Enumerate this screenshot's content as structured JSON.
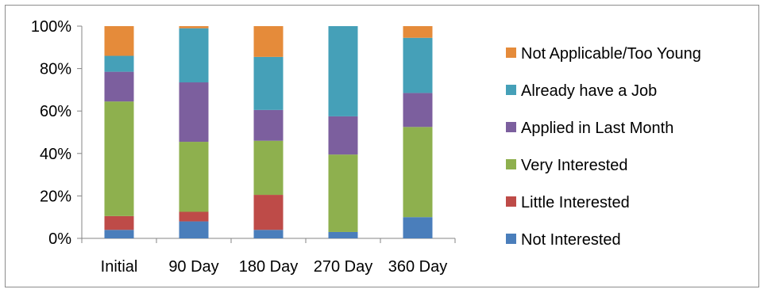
{
  "chart_data": {
    "type": "bar",
    "stacked": true,
    "normalized": true,
    "categories": [
      "Initial",
      "90 Day",
      "180 Day",
      "270 Day",
      "360 Day"
    ],
    "ylim": [
      0,
      100
    ],
    "yticks": [
      "0%",
      "20%",
      "40%",
      "60%",
      "80%",
      "100%"
    ],
    "grid": false,
    "legend_position": "right",
    "series": [
      {
        "name": "Not Interested",
        "color": "#4a7ebb",
        "values": [
          4,
          8,
          4,
          3,
          10
        ]
      },
      {
        "name": "Little Interested",
        "color": "#be4b48",
        "values": [
          6.5,
          4.5,
          16.5,
          0,
          0
        ]
      },
      {
        "name": "Very Interested",
        "color": "#8eb04e",
        "values": [
          54,
          33,
          25.5,
          36.5,
          42.5
        ]
      },
      {
        "name": "Applied in Last Month",
        "color": "#7c5f9e",
        "values": [
          14,
          28,
          14.5,
          18,
          16
        ]
      },
      {
        "name": "Already have a Job",
        "color": "#45a0b8",
        "values": [
          7.5,
          25.5,
          25,
          42.5,
          26
        ]
      },
      {
        "name": "Not Applicable/Too Young",
        "color": "#e58b3a",
        "values": [
          14,
          1,
          14.5,
          0,
          5.5
        ]
      }
    ]
  }
}
